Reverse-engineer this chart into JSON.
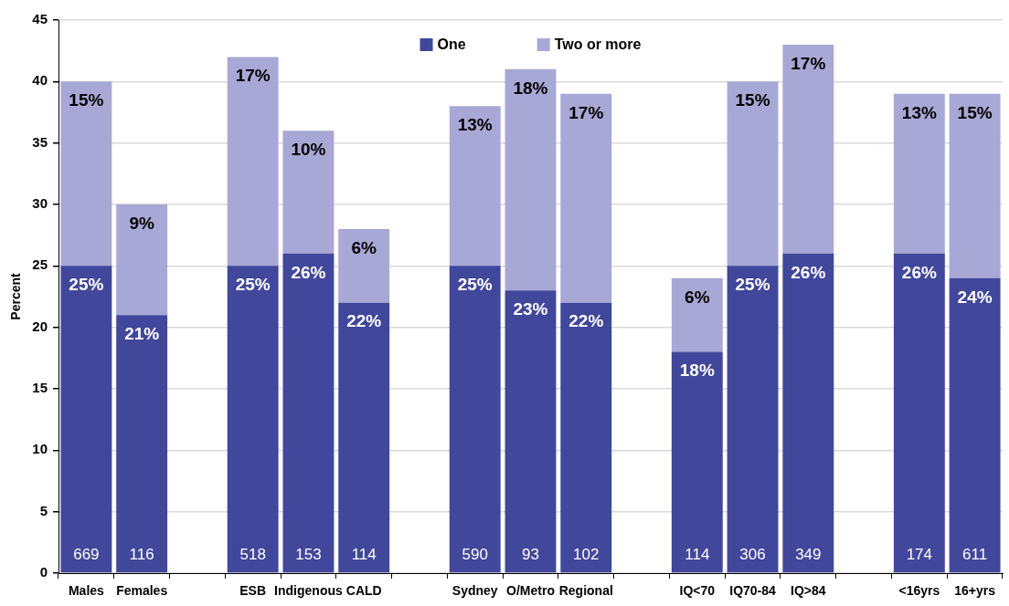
{
  "chart_data": {
    "type": "bar",
    "stacked": true,
    "ylabel": "Percent",
    "categories": [
      "Males",
      "Females",
      null,
      "ESB",
      "Indigenous",
      "CALD",
      null,
      "Sydney",
      "O/Metro",
      "Regional",
      null,
      "IQ<70",
      "IQ70-84",
      "IQ>84",
      null,
      "<16yrs",
      "16+yrs"
    ],
    "series": [
      {
        "name": "One",
        "color": "#41479b",
        "values": [
          25,
          21,
          null,
          25,
          26,
          22,
          null,
          25,
          23,
          22,
          null,
          18,
          25,
          26,
          null,
          26,
          24
        ],
        "value_labels": [
          "25%",
          "21%",
          null,
          "25%",
          "26%",
          "22%",
          null,
          "25%",
          "23%",
          "22%",
          null,
          "18%",
          "25%",
          "26%",
          null,
          "26%",
          "24%"
        ]
      },
      {
        "name": "Two or more",
        "color": "#a7a8d5",
        "values": [
          15,
          9,
          null,
          17,
          10,
          6,
          null,
          13,
          18,
          17,
          null,
          6,
          15,
          17,
          null,
          13,
          15
        ],
        "value_labels": [
          "15%",
          "9%",
          null,
          "17%",
          "10%",
          "6%",
          null,
          "13%",
          "18%",
          "17%",
          null,
          "6%",
          "15%",
          "17%",
          null,
          "13%",
          "15%"
        ]
      }
    ],
    "ylim": [
      0,
      45
    ],
    "yticks": [
      0,
      5,
      10,
      15,
      20,
      25,
      30,
      35,
      40,
      45
    ],
    "grid": "y",
    "legend": "top",
    "annotations": [
      {
        "text": "669",
        "x": "Males",
        "y": 0
      },
      {
        "text": "116",
        "x": "Females",
        "y": 0
      },
      {
        "text": "518",
        "x": "ESB",
        "y": 0
      },
      {
        "text": "153",
        "x": "Indigenous",
        "y": 0
      },
      {
        "text": "114",
        "x": "CALD",
        "y": 0
      },
      {
        "text": "590",
        "x": "Sydney",
        "y": 0
      },
      {
        "text": "93",
        "x": "O/Metro",
        "y": 0
      },
      {
        "text": "102",
        "x": "Regional",
        "y": 0
      },
      {
        "text": "114",
        "x": "IQ<70",
        "y": 0
      },
      {
        "text": "306",
        "x": "IQ70-84",
        "y": 0
      },
      {
        "text": "349",
        "x": "IQ>84",
        "y": 0
      },
      {
        "text": "174",
        "x": "<16yrs",
        "y": 0
      },
      {
        "text": "611",
        "x": "16+yrs",
        "y": 0
      }
    ]
  }
}
